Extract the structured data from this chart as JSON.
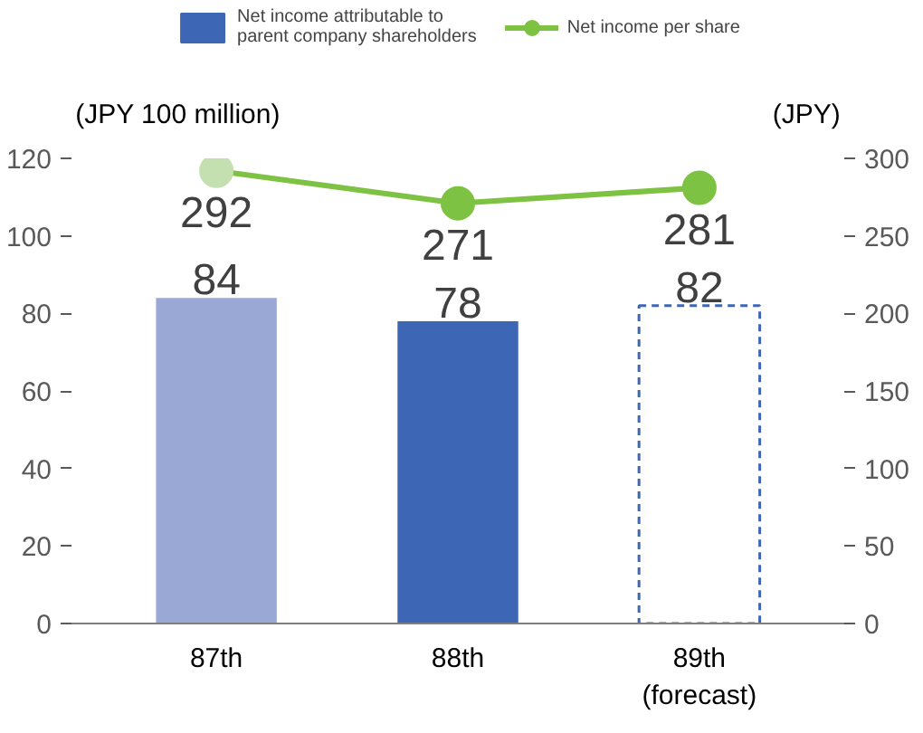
{
  "chart_data": {
    "type": "bar",
    "categories": [
      "87th",
      "88th",
      "89th\n(forecast)"
    ],
    "ylabel": "(JPY 100 million)",
    "y2label": "(JPY)",
    "ylim": [
      0,
      120
    ],
    "yticks": [
      0,
      20,
      40,
      60,
      80,
      100,
      120
    ],
    "y2lim": [
      0,
      300
    ],
    "y2ticks": [
      0,
      50,
      100,
      150,
      200,
      250,
      300
    ],
    "series": [
      {
        "name": "Net income attributable to\nparent company shareholders",
        "colors": [
          "#9aa8d5",
          "#3d66b5",
          "#3d66b5"
        ],
        "values": [
          84,
          78,
          null
        ]
      },
      {
        "color": "#3d66b5",
        "line_style": "dashed",
        "values": [
          null,
          null,
          82
        ]
      },
      {
        "name": "Net income per share",
        "type": "line",
        "axis": "y2",
        "color": "#7dc242",
        "colors": [
          "#c5e0b0",
          "#7dc242",
          "#7dc242"
        ],
        "marker": "circle",
        "values": [
          292,
          271,
          281
        ]
      }
    ],
    "data_labels": true,
    "legend": "top",
    "grid": false
  }
}
